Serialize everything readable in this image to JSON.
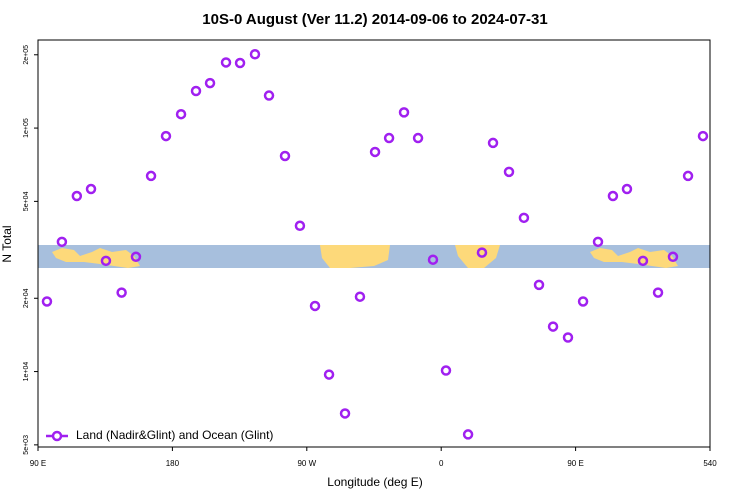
{
  "chart_data": {
    "type": "scatter",
    "title": "10S-0 August (Ver 11.2)   2014-09-06 to 2024-07-31",
    "xlabel": "Longitude (deg E)",
    "ylabel": "N Total",
    "log_y": true,
    "legend": "bottom-left",
    "xlim": [
      90,
      540
    ],
    "xticks": [
      {
        "value": 90,
        "label": "90 E"
      },
      180,
      {
        "value": 270,
        "label": "90 W"
      },
      {
        "value": 360,
        "label": "0"
      },
      {
        "value": 450,
        "label": "90 E"
      },
      540
    ],
    "ylim": [
      4900,
      230000
    ],
    "yticks": [
      {
        "value": 5000,
        "label": "5e+03"
      },
      {
        "value": 10000,
        "label": "1e+04"
      },
      {
        "value": 20000,
        "label": "2e+04"
      },
      {
        "value": 50000,
        "label": "5e+04"
      },
      {
        "value": 100000,
        "label": "1e+05"
      },
      {
        "value": 200000,
        "label": "2e+05"
      }
    ],
    "x": [
      96,
      106,
      116,
      125.5,
      135.5,
      146,
      155.6,
      165.7,
      175.7,
      185.8,
      195.8,
      205.2,
      215.9,
      225.3,
      235.3,
      244.7,
      255.4,
      265.4,
      275.5,
      284.9,
      295.6,
      305.6,
      315.7,
      325.1,
      335.1,
      344.5,
      354.5,
      363.2,
      378,
      387.3,
      394.7,
      405.4,
      415.4,
      425.5,
      434.9,
      444.9,
      455,
      465,
      475,
      484.4,
      495.1,
      505.2,
      515.2,
      525.3,
      535.3
    ],
    "series": [
      {
        "name": "Land (Nadir&Glint) and Ocean (Glint)",
        "color": "#a020f0",
        "values": [
          19400,
          34100,
          52600,
          56200,
          28500,
          21100,
          29600,
          63600,
          92700,
          114000,
          142000,
          153000,
          186000,
          185000,
          201000,
          136000,
          76800,
          39700,
          18600,
          9720,
          6730,
          20300,
          79800,
          91000,
          116000,
          91000,
          28800,
          10100,
          5520,
          30800,
          86900,
          66100,
          42800,
          22700,
          15300,
          13800,
          19400,
          34100,
          52600,
          56200,
          28500,
          21100,
          29600,
          63600,
          92700
        ]
      }
    ]
  }
}
